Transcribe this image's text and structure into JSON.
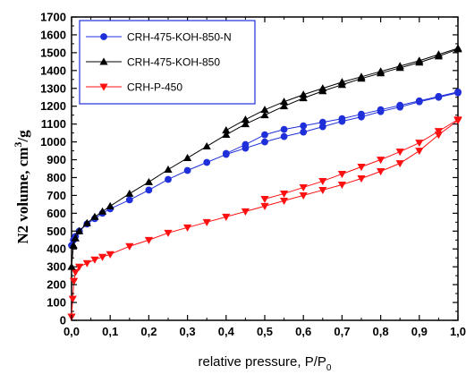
{
  "chart_data": {
    "type": "line",
    "title": "",
    "xlabel": "relative pressure, P/P",
    "xlabel_sub": "0",
    "ylabel": "N2 volume, cm",
    "ylabel_sup": "3",
    "ylabel_tail": "/g",
    "xlim": [
      0,
      1.0
    ],
    "ylim": [
      0,
      1700
    ],
    "xticks": [
      "0,0",
      "0,1",
      "0,2",
      "0,3",
      "0,4",
      "0,5",
      "0,6",
      "0,7",
      "0,8",
      "0,9",
      "1,0"
    ],
    "yticks": [
      "0",
      "100",
      "200",
      "300",
      "400",
      "500",
      "600",
      "700",
      "800",
      "900",
      "1000",
      "1100",
      "1200",
      "1300",
      "1400",
      "1500",
      "1600",
      "1700"
    ],
    "legend_position": "top-left",
    "grid": false,
    "series": [
      {
        "name": "CRH-475-KOH-850-N",
        "color": "#1f2fd9",
        "marker": "circle",
        "adsorption": {
          "x": [
            0.0,
            0.005,
            0.01,
            0.02,
            0.04,
            0.06,
            0.08,
            0.1,
            0.15,
            0.2,
            0.25,
            0.3,
            0.35,
            0.4,
            0.45,
            0.5,
            0.55,
            0.6,
            0.65,
            0.7,
            0.75,
            0.8,
            0.85,
            0.9,
            0.95,
            1.0
          ],
          "y": [
            420,
            450,
            470,
            500,
            540,
            570,
            600,
            625,
            675,
            730,
            790,
            840,
            885,
            930,
            965,
            1000,
            1030,
            1055,
            1085,
            1115,
            1140,
            1170,
            1195,
            1225,
            1250,
            1275
          ]
        },
        "desorption": {
          "x": [
            1.0,
            0.95,
            0.9,
            0.85,
            0.8,
            0.75,
            0.7,
            0.65,
            0.6,
            0.55,
            0.5,
            0.45,
            0.4
          ],
          "y": [
            1280,
            1255,
            1230,
            1205,
            1180,
            1155,
            1130,
            1110,
            1090,
            1070,
            1040,
            985,
            935
          ]
        }
      },
      {
        "name": "CRH-475-KOH-850",
        "color": "#000000",
        "marker": "triangle-up",
        "adsorption": {
          "x": [
            0.0,
            0.005,
            0.01,
            0.02,
            0.04,
            0.06,
            0.08,
            0.1,
            0.15,
            0.2,
            0.25,
            0.3,
            0.35,
            0.4,
            0.45,
            0.5,
            0.55,
            0.6,
            0.65,
            0.7,
            0.75,
            0.8,
            0.85,
            0.9,
            0.95,
            1.0
          ],
          "y": [
            300,
            420,
            460,
            500,
            545,
            580,
            610,
            640,
            710,
            775,
            845,
            910,
            975,
            1040,
            1100,
            1150,
            1200,
            1245,
            1285,
            1320,
            1355,
            1385,
            1415,
            1445,
            1480,
            1520
          ]
        },
        "desorption": {
          "x": [
            1.0,
            0.95,
            0.9,
            0.85,
            0.8,
            0.75,
            0.7,
            0.65,
            0.6,
            0.55,
            0.5,
            0.45,
            0.4
          ],
          "y": [
            1525,
            1490,
            1455,
            1425,
            1395,
            1365,
            1335,
            1300,
            1265,
            1225,
            1180,
            1125,
            1065
          ]
        }
      },
      {
        "name": "CRH-P-450",
        "color": "#ff1010",
        "marker": "triangle-down",
        "adsorption": {
          "x": [
            0.0,
            0.003,
            0.006,
            0.01,
            0.02,
            0.04,
            0.06,
            0.08,
            0.1,
            0.15,
            0.2,
            0.25,
            0.3,
            0.35,
            0.4,
            0.45,
            0.5,
            0.55,
            0.6,
            0.65,
            0.7,
            0.75,
            0.8,
            0.85,
            0.9,
            0.95,
            1.0
          ],
          "y": [
            20,
            120,
            220,
            270,
            300,
            320,
            340,
            355,
            370,
            415,
            450,
            490,
            520,
            550,
            580,
            610,
            640,
            670,
            700,
            730,
            760,
            795,
            835,
            880,
            950,
            1040,
            1120
          ]
        },
        "desorption": {
          "x": [
            1.0,
            0.95,
            0.9,
            0.85,
            0.8,
            0.75,
            0.7,
            0.65,
            0.6,
            0.55,
            0.5
          ],
          "y": [
            1125,
            1060,
            995,
            945,
            900,
            860,
            820,
            780,
            745,
            710,
            680
          ]
        }
      }
    ]
  }
}
